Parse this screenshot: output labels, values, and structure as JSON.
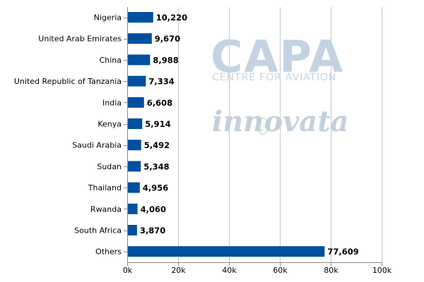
{
  "watermarks": {
    "capa": "CAPA",
    "capa_sub": "CENTRE FOR AVIATION",
    "innovata": "innovata"
  },
  "colors": {
    "bar": "#0050a0",
    "grid": "#c8c8c8",
    "axis": "#888888",
    "text": "#000000"
  },
  "chart_data": {
    "type": "bar",
    "orientation": "horizontal",
    "title": "",
    "xlabel": "",
    "ylabel": "",
    "categories": [
      "Nigeria",
      "United Arab Emirates",
      "China",
      "United Republic of Tanzania",
      "India",
      "Kenya",
      "Saudi Arabia",
      "Sudan",
      "Thailand",
      "Rwanda",
      "South Africa",
      "Others"
    ],
    "values": [
      10220,
      9670,
      8988,
      7334,
      6608,
      5914,
      5492,
      5348,
      4956,
      4060,
      3870,
      77609
    ],
    "value_labels": [
      "10,220",
      "9,670",
      "8,988",
      "7,334",
      "6,608",
      "5,914",
      "5,492",
      "5,348",
      "4,956",
      "4,060",
      "3,870",
      "77,609"
    ],
    "xlim": [
      0,
      100000
    ],
    "xticks": [
      0,
      20000,
      40000,
      60000,
      80000,
      100000
    ],
    "xtick_labels": [
      "0k",
      "20k",
      "40k",
      "60k",
      "80k",
      "100k"
    ],
    "grid": true,
    "legend": "none"
  }
}
